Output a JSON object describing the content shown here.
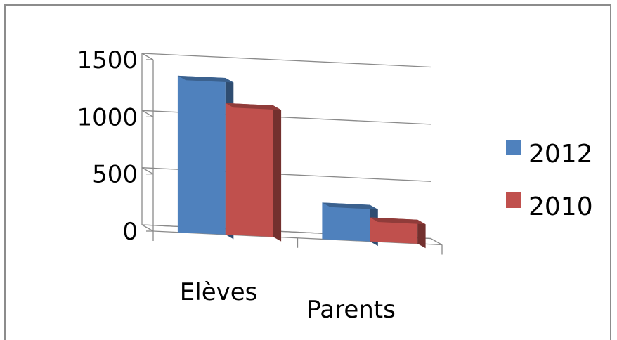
{
  "chart_data": {
    "type": "bar",
    "categories": [
      "Elèves",
      "Parents"
    ],
    "series": [
      {
        "name": "2012",
        "values": [
          1370,
          320
        ],
        "color": "#4F81BD"
      },
      {
        "name": "2010",
        "values": [
          1150,
          210
        ],
        "color": "#C0504D"
      }
    ],
    "yticks": [
      "0",
      "500",
      "1000",
      "1500"
    ],
    "ylim": [
      0,
      1500
    ],
    "grid": true,
    "legend": "right",
    "three_d": true
  }
}
